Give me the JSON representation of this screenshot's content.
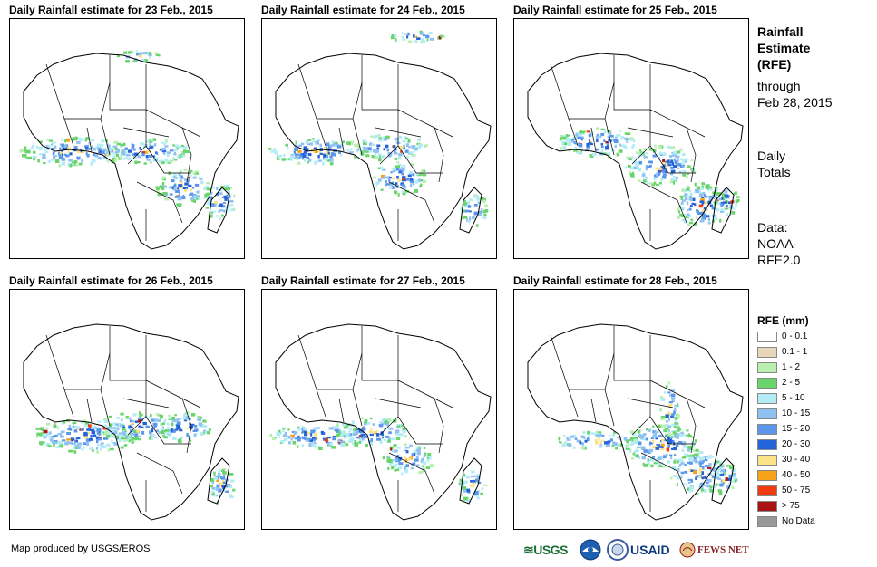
{
  "panels": [
    {
      "title": "Daily Rainfall estimate for 23 Feb., 2015"
    },
    {
      "title": "Daily Rainfall estimate for 24 Feb., 2015"
    },
    {
      "title": "Daily Rainfall estimate for 25 Feb., 2015"
    },
    {
      "title": "Daily Rainfall estimate for 26 Feb., 2015"
    },
    {
      "title": "Daily Rainfall estimate for 27 Feb., 2015"
    },
    {
      "title": "Daily Rainfall estimate for 28 Feb., 2015"
    }
  ],
  "info": {
    "title_line1": "Rainfall",
    "title_line2": "Estimate",
    "title_line3": "(RFE)",
    "through_line1": "through",
    "through_line2": "Feb 28, 2015",
    "totals_line1": "Daily",
    "totals_line2": "Totals",
    "data_line1": "Data:",
    "data_line2": "NOAA-",
    "data_line3": "RFE2.0"
  },
  "legend": {
    "title": "RFE (mm)",
    "items": [
      {
        "label": "0 - 0.1",
        "color": "#ffffff"
      },
      {
        "label": "0.1 - 1",
        "color": "#e8d6bb"
      },
      {
        "label": "1 - 2",
        "color": "#b9f0b0"
      },
      {
        "label": "2 - 5",
        "color": "#69d46a"
      },
      {
        "label": "5 - 10",
        "color": "#b4ecf5"
      },
      {
        "label": "10 - 15",
        "color": "#8fc2f2"
      },
      {
        "label": "15 - 20",
        "color": "#5a97ea"
      },
      {
        "label": "20 - 30",
        "color": "#2463d8"
      },
      {
        "label": "30 - 40",
        "color": "#fbe38a"
      },
      {
        "label": "40 - 50",
        "color": "#f6a21a"
      },
      {
        "label": "50 - 75",
        "color": "#f03a10"
      },
      {
        "label": "> 75",
        "color": "#a81414"
      },
      {
        "label": "No Data",
        "color": "#999999"
      }
    ]
  },
  "footer": {
    "credit": "Map produced by USGS/EROS"
  },
  "logos": {
    "usgs": "≋USGS",
    "usaid": "USAID",
    "fews": "FEWS NET"
  }
}
